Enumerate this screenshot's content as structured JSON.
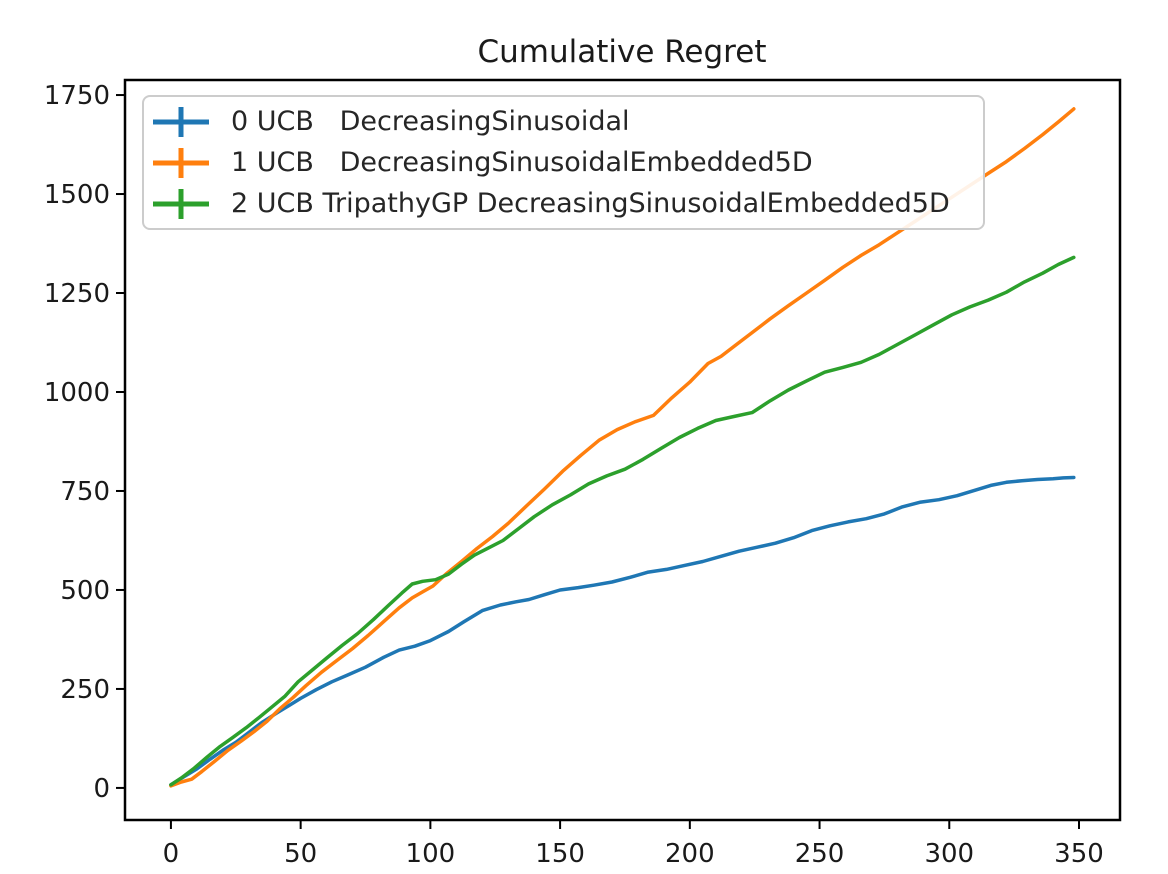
{
  "figure": {
    "background": "#ffffff",
    "text_color": "#1a1a1a",
    "spine_color": "#000000",
    "legend_border_color": "#cccccc"
  },
  "chart_data": {
    "type": "line",
    "title": "Cumulative Regret",
    "xlabel": "",
    "ylabel": "",
    "grid": false,
    "legend_position": "upper left",
    "legend_marker": "errorbar-cross",
    "xlim": [
      -17.7,
      365.8
    ],
    "ylim": [
      -81,
      1788
    ],
    "xticks": [
      0,
      50,
      100,
      150,
      200,
      250,
      300,
      350
    ],
    "yticks": [
      0,
      250,
      500,
      750,
      1000,
      1250,
      1500,
      1750
    ],
    "series": [
      {
        "name": "0 UCB   DecreasingSinusoidal",
        "color": "#1f77b4",
        "x": [
          0,
          5,
          10,
          15,
          20,
          25,
          30,
          35,
          41,
          46,
          50,
          56,
          62,
          68,
          75,
          82,
          88,
          94,
          100,
          107,
          113,
          120,
          127,
          133,
          138,
          144,
          150,
          157,
          163,
          170,
          177,
          184,
          191,
          198,
          205,
          212,
          219,
          226,
          233,
          240,
          247,
          254,
          261,
          268,
          275,
          282,
          289,
          296,
          303,
          310,
          316,
          322,
          328,
          334,
          340,
          344,
          348
        ],
        "y": [
          8,
          28,
          48,
          72,
          95,
          115,
          140,
          165,
          190,
          210,
          226,
          248,
          268,
          285,
          305,
          330,
          348,
          358,
          372,
          395,
          420,
          448,
          462,
          470,
          476,
          488,
          500,
          506,
          512,
          520,
          532,
          545,
          552,
          562,
          572,
          585,
          598,
          608,
          618,
          632,
          650,
          662,
          672,
          680,
          692,
          710,
          722,
          728,
          738,
          752,
          764,
          772,
          776,
          779,
          781,
          783,
          784
        ]
      },
      {
        "name": "1 UCB   DecreasingSinusoidalEmbedded5D",
        "color": "#ff7f0e",
        "x": [
          0,
          4,
          8,
          12,
          17,
          22,
          27,
          32,
          37,
          42,
          47,
          52,
          58,
          64,
          70,
          76,
          82,
          88,
          93,
          97,
          101,
          106,
          112,
          118,
          124,
          130,
          137,
          144,
          151,
          158,
          165,
          172,
          179,
          186,
          193,
          200,
          207,
          212,
          218,
          224,
          231,
          238,
          245,
          252,
          259,
          266,
          273,
          280,
          287,
          294,
          301,
          308,
          315,
          322,
          329,
          336,
          342,
          348
        ],
        "y": [
          5,
          15,
          22,
          42,
          68,
          95,
          118,
          142,
          168,
          200,
          228,
          258,
          292,
          322,
          352,
          385,
          420,
          455,
          480,
          495,
          510,
          540,
          572,
          605,
          635,
          668,
          712,
          755,
          800,
          840,
          878,
          905,
          925,
          941,
          985,
          1025,
          1072,
          1090,
          1120,
          1150,
          1185,
          1218,
          1250,
          1282,
          1315,
          1345,
          1372,
          1402,
          1432,
          1462,
          1492,
          1522,
          1552,
          1582,
          1615,
          1650,
          1682,
          1715
        ]
      },
      {
        "name": "2 UCB TripathyGP DecreasingSinusoidalEmbedded5D",
        "color": "#2ca02c",
        "x": [
          0,
          4,
          9,
          14,
          19,
          24,
          29,
          34,
          39,
          44,
          49,
          54,
          60,
          66,
          72,
          78,
          84,
          89,
          93,
          97,
          102,
          107,
          112,
          117,
          122,
          128,
          134,
          140,
          147,
          154,
          161,
          168,
          175,
          182,
          189,
          196,
          203,
          210,
          217,
          224,
          231,
          238,
          245,
          252,
          259,
          266,
          273,
          280,
          287,
          294,
          301,
          308,
          315,
          322,
          329,
          336,
          342,
          348
        ],
        "y": [
          8,
          25,
          50,
          78,
          105,
          128,
          152,
          178,
          205,
          232,
          268,
          295,
          328,
          360,
          390,
          425,
          462,
          492,
          515,
          522,
          526,
          540,
          565,
          588,
          605,
          625,
          655,
          685,
          715,
          740,
          768,
          788,
          805,
          830,
          858,
          885,
          908,
          928,
          938,
          948,
          978,
          1005,
          1028,
          1050,
          1062,
          1075,
          1095,
          1120,
          1145,
          1170,
          1195,
          1215,
          1232,
          1252,
          1278,
          1300,
          1322,
          1340
        ]
      }
    ]
  }
}
